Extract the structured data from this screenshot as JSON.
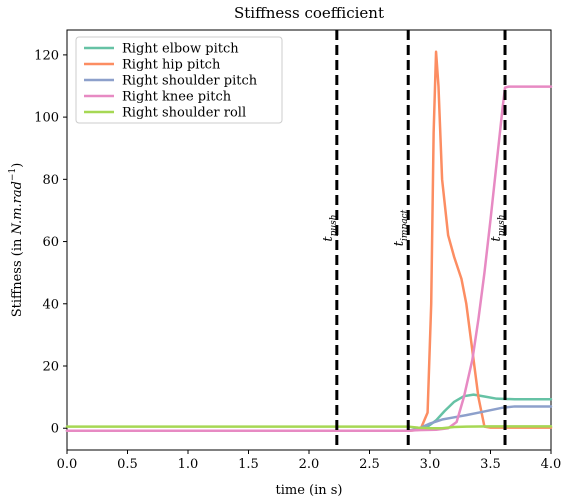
{
  "chart_data": {
    "type": "line",
    "title": "Stiffness coefficient",
    "xlabel": "time (in s)",
    "ylabel": "Stiffness (in N.m.rad⁻¹)",
    "ylabel_parts": {
      "prefix": "Stiffness (in ",
      "unit": "N.m.rad",
      "exp": "−1",
      "suffix": ")"
    },
    "xlim": [
      0.0,
      4.0
    ],
    "ylim": [
      -7,
      128
    ],
    "xticks": [
      0.0,
      0.5,
      1.0,
      1.5,
      2.0,
      2.5,
      3.0,
      3.5,
      4.0
    ],
    "xtick_labels": [
      "0.0",
      "0.5",
      "1.0",
      "1.5",
      "2.0",
      "2.5",
      "3.0",
      "3.5",
      "4.0"
    ],
    "yticks": [
      0,
      20,
      40,
      60,
      80,
      100,
      120
    ],
    "ytick_labels": [
      "0",
      "20",
      "40",
      "60",
      "80",
      "100",
      "120"
    ],
    "grid": false,
    "legend_position": "top-left",
    "vertical_markers": [
      {
        "x": 2.23,
        "label_main": "t",
        "label_sub": "push"
      },
      {
        "x": 2.82,
        "label_main": "t",
        "label_sub": "impact"
      },
      {
        "x": 3.62,
        "label_main": "t",
        "label_sub": "push"
      }
    ],
    "series": [
      {
        "name": "Right elbow pitch",
        "color": "#66c2a5",
        "points": [
          [
            0.0,
            -0.8
          ],
          [
            2.82,
            -0.8
          ],
          [
            2.9,
            -0.5
          ],
          [
            2.98,
            0.5
          ],
          [
            3.05,
            2.5
          ],
          [
            3.12,
            5.5
          ],
          [
            3.2,
            8.5
          ],
          [
            3.28,
            10.3
          ],
          [
            3.36,
            10.8
          ],
          [
            3.45,
            10.2
          ],
          [
            3.55,
            9.5
          ],
          [
            3.7,
            9.3
          ],
          [
            4.0,
            9.3
          ]
        ]
      },
      {
        "name": "Right hip pitch",
        "color": "#fc8d62",
        "points": [
          [
            0.0,
            -0.8
          ],
          [
            2.82,
            -0.8
          ],
          [
            2.92,
            -0.5
          ],
          [
            2.98,
            5
          ],
          [
            3.01,
            40
          ],
          [
            3.03,
            95
          ],
          [
            3.05,
            121
          ],
          [
            3.07,
            110
          ],
          [
            3.1,
            80
          ],
          [
            3.15,
            62
          ],
          [
            3.2,
            55
          ],
          [
            3.26,
            48
          ],
          [
            3.3,
            40
          ],
          [
            3.35,
            25
          ],
          [
            3.4,
            10
          ],
          [
            3.45,
            0.5
          ],
          [
            3.5,
            0.2
          ],
          [
            4.0,
            0.2
          ]
        ]
      },
      {
        "name": "Right shoulder pitch",
        "color": "#8da0cb",
        "points": [
          [
            0.0,
            -0.8
          ],
          [
            2.82,
            -0.8
          ],
          [
            2.9,
            -0.2
          ],
          [
            3.0,
            1.5
          ],
          [
            3.1,
            2.8
          ],
          [
            3.2,
            3.5
          ],
          [
            3.3,
            4.2
          ],
          [
            3.4,
            5.0
          ],
          [
            3.5,
            5.8
          ],
          [
            3.6,
            6.6
          ],
          [
            3.7,
            7.0
          ],
          [
            4.0,
            7.0
          ]
        ]
      },
      {
        "name": "Right knee pitch",
        "color": "#e78ac3",
        "points": [
          [
            0.0,
            -0.8
          ],
          [
            2.82,
            -0.8
          ],
          [
            2.9,
            -0.6
          ],
          [
            3.05,
            -0.5
          ],
          [
            3.15,
            0.0
          ],
          [
            3.22,
            2
          ],
          [
            3.28,
            10
          ],
          [
            3.35,
            22
          ],
          [
            3.4,
            35
          ],
          [
            3.45,
            50
          ],
          [
            3.5,
            67
          ],
          [
            3.55,
            85
          ],
          [
            3.6,
            103
          ],
          [
            3.62,
            109.5
          ],
          [
            3.65,
            109.8
          ],
          [
            4.0,
            109.8
          ]
        ]
      },
      {
        "name": "Right shoulder roll",
        "color": "#a6d854",
        "points": [
          [
            0.0,
            0.5
          ],
          [
            2.82,
            0.5
          ],
          [
            2.9,
            0.2
          ],
          [
            3.0,
            0.0
          ],
          [
            3.1,
            0.0
          ],
          [
            3.2,
            0.4
          ],
          [
            3.3,
            0.5
          ],
          [
            3.5,
            0.6
          ],
          [
            4.0,
            0.6
          ]
        ]
      }
    ]
  }
}
